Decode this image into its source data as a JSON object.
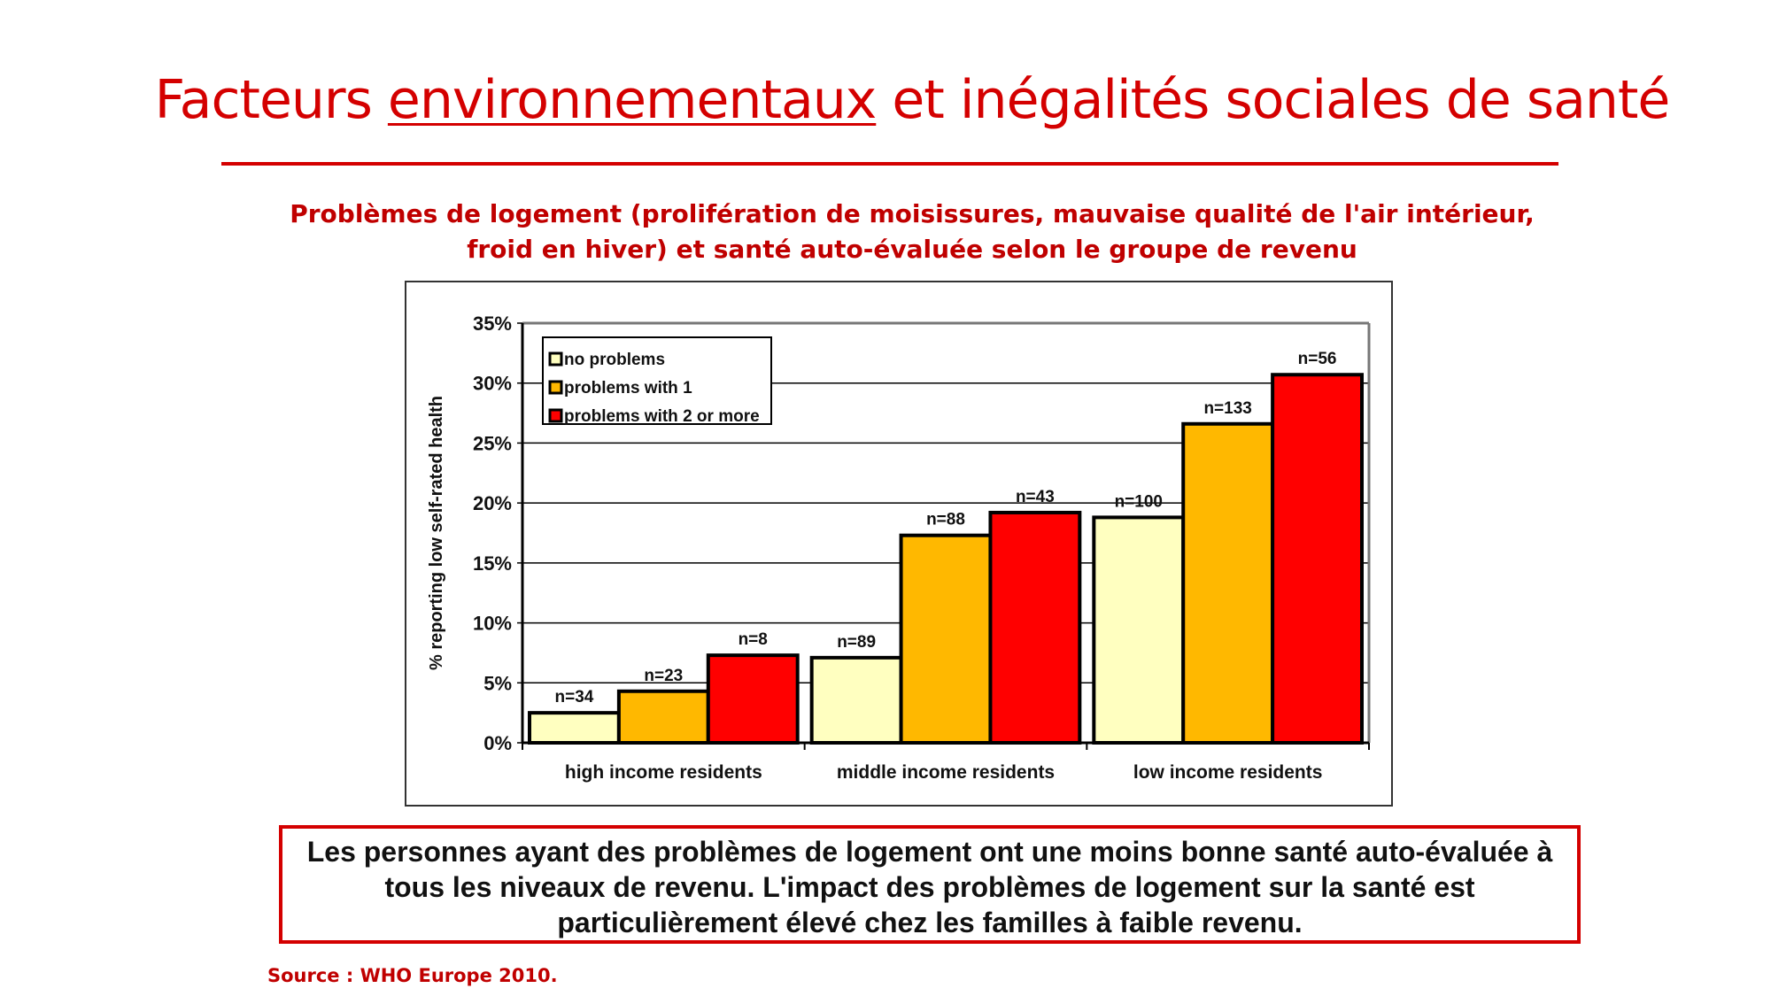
{
  "slide": {
    "title_part1": "Facteurs ",
    "title_underlined": "environnementaux",
    "title_part2": " et inégalités sociales de santé",
    "subtitle_line1": "Problèmes de logement (prolifération de moisissures, mauvaise qualité de l'air intérieur,",
    "subtitle_line2": "froid en hiver) et santé auto-évaluée selon le groupe de revenu",
    "note": "Les personnes ayant des problèmes de logement ont une moins bonne santé auto-évaluée à tous les niveaux de revenu. L'impact des problèmes de logement sur la santé est particulièrement élevé chez les familles à faible revenu.",
    "source": "Source : WHO Europe 2010.",
    "accent_color": "#d40000"
  },
  "chart_data": {
    "type": "bar",
    "title": "",
    "xlabel": "",
    "ylabel": "% reporting low self-rated health",
    "ylim": [
      0,
      35
    ],
    "yticks": [
      "0%",
      "5%",
      "10%",
      "15%",
      "20%",
      "25%",
      "30%",
      "35%"
    ],
    "ytick_values": [
      0,
      5,
      10,
      15,
      20,
      25,
      30,
      35
    ],
    "grid": true,
    "legend_position": "top-left",
    "categories": [
      "high income residents",
      "middle income residents",
      "low income residents"
    ],
    "series": [
      {
        "name": "no problems",
        "color": "#ffffc0",
        "values": [
          2.5,
          7.1,
          18.8
        ],
        "labels": [
          "n=34",
          "n=89",
          "n=100"
        ]
      },
      {
        "name": "problems with 1",
        "color": "#ffb800",
        "values": [
          4.3,
          17.3,
          26.6
        ],
        "labels": [
          "n=23",
          "n=88",
          "n=133"
        ]
      },
      {
        "name": "problems with 2 or more",
        "color": "#ff0000",
        "values": [
          7.3,
          19.2,
          30.7
        ],
        "labels": [
          "n=8",
          "n=43",
          "n=56"
        ]
      }
    ]
  }
}
